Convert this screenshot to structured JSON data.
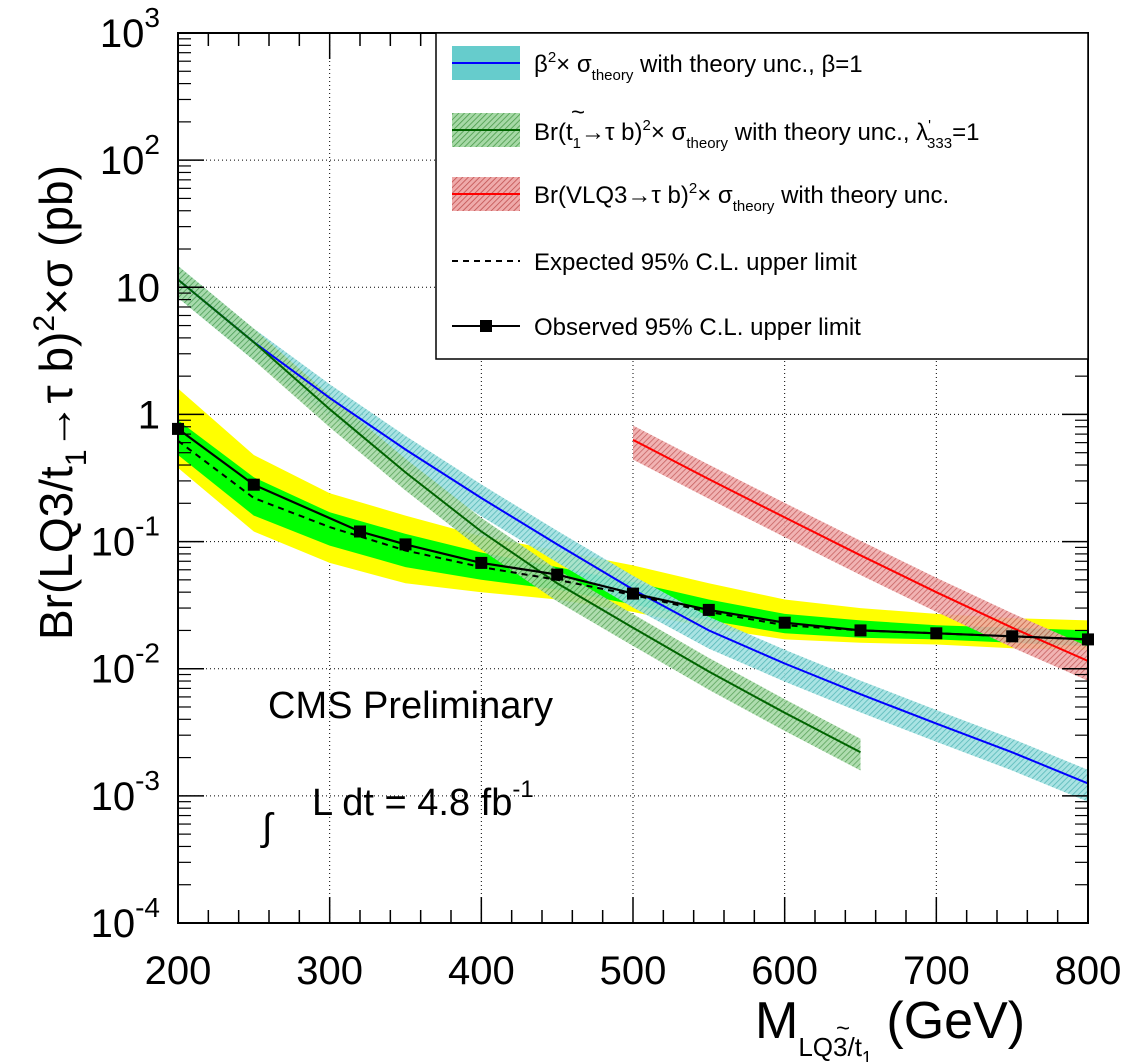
{
  "chart_data": {
    "type": "line",
    "log_y": true,
    "xlim": [
      200,
      800
    ],
    "ylim": [
      0.0001,
      1000
    ],
    "grid": true,
    "legend_position": "top-right",
    "x_ticks": [
      {
        "value": 200,
        "label": "200"
      },
      {
        "value": 300,
        "label": "300"
      },
      {
        "value": 400,
        "label": "400"
      },
      {
        "value": 500,
        "label": "500"
      },
      {
        "value": 600,
        "label": "600"
      },
      {
        "value": 700,
        "label": "700"
      },
      {
        "value": 800,
        "label": "800"
      }
    ],
    "y_ticks": [
      {
        "value": 1000,
        "base": "10",
        "exp": "3"
      },
      {
        "value": 100,
        "base": "10",
        "exp": "2"
      },
      {
        "value": 10,
        "base": "10",
        "exp": ""
      },
      {
        "value": 1,
        "base": "1",
        "exp": ""
      },
      {
        "value": 0.1,
        "base": "10",
        "exp": "-1"
      },
      {
        "value": 0.01,
        "base": "10",
        "exp": "-2"
      },
      {
        "value": 0.001,
        "base": "10",
        "exp": "-3"
      },
      {
        "value": 0.0001,
        "base": "10",
        "exp": "-4"
      }
    ],
    "xlabel": {
      "main": "M",
      "sub": "LQ3/t",
      "subsub": "1",
      "tilde": "~",
      "unit": " (GeV)"
    },
    "ylabel": {
      "p1": "Br(LQ3/t",
      "sub1": "1",
      "p2": "→τ b)",
      "sup": "2",
      "p3": "×σ (pb)"
    },
    "annotations": {
      "experiment": "CMS Preliminary",
      "integral": "∫",
      "lumi_text": "L dt = 4.8 fb",
      "lumi_exp": "-1"
    },
    "colors": {
      "beta_line": "#0000ff",
      "beta_band": "#66cccc",
      "stop_line": "#006400",
      "stop_band": "#66bb66",
      "vlq_line": "#ff0000",
      "vlq_band": "#dd6666",
      "one_sigma": "#00ff00",
      "two_sigma": "#ffff00",
      "limit": "#000000"
    },
    "series": [
      {
        "key": "beta",
        "x": [
          200,
          250,
          300,
          350,
          400,
          450,
          500,
          550,
          600,
          650,
          700,
          750,
          800
        ],
        "values": [
          11.5,
          3.7,
          1.35,
          0.53,
          0.22,
          0.095,
          0.042,
          0.02,
          0.011,
          0.0063,
          0.0037,
          0.0022,
          0.00125
        ],
        "band_rel": 0.28,
        "legend": {
          "pre": "β",
          "pre_sup": "2",
          "mid": "× σ",
          "sub": "theory",
          "post": " with theory unc., β=1"
        }
      },
      {
        "key": "stop",
        "x": [
          200,
          250,
          300,
          350,
          400,
          450,
          500,
          550,
          600,
          650
        ],
        "values": [
          11.5,
          3.7,
          1.1,
          0.35,
          0.12,
          0.047,
          0.021,
          0.0095,
          0.0045,
          0.0022
        ],
        "band_rel": 0.28,
        "legend": {
          "pre": "Br(",
          "tilde": "~",
          "t": "t",
          "t_sub": "1",
          "mid1": "→τ b)",
          "pre_sup": "2",
          "mid": "× σ",
          "sub": "theory",
          "post": " with theory unc., λ",
          "lam_sup": "'",
          "lam_sub": "333",
          "post2": "=1"
        }
      },
      {
        "key": "vlq",
        "x": [
          500,
          550,
          600,
          650,
          700,
          750,
          800
        ],
        "values": [
          0.63,
          0.31,
          0.155,
          0.078,
          0.04,
          0.021,
          0.0115
        ],
        "band_rel": 0.3,
        "legend": {
          "pre": "Br(VLQ3→τ b)",
          "pre_sup": "2",
          "mid": "× σ",
          "sub": "theory",
          "post": " with theory unc."
        }
      },
      {
        "key": "expected",
        "x": [
          200,
          250,
          300,
          350,
          400,
          450,
          500,
          550,
          600,
          650,
          700,
          750,
          800
        ],
        "values": [
          0.62,
          0.22,
          0.13,
          0.085,
          0.063,
          0.05,
          0.038,
          0.028,
          0.022,
          0.02,
          0.019,
          0.018,
          0.017
        ],
        "band_1sigma_lo": [
          0.48,
          0.16,
          0.093,
          0.063,
          0.05,
          0.042,
          0.032,
          0.024,
          0.019,
          0.0175,
          0.017,
          0.016,
          0.015
        ],
        "band_1sigma_hi": [
          0.9,
          0.32,
          0.17,
          0.115,
          0.082,
          0.063,
          0.048,
          0.035,
          0.027,
          0.024,
          0.022,
          0.021,
          0.02
        ],
        "band_2sigma_lo": [
          0.38,
          0.12,
          0.068,
          0.047,
          0.04,
          0.035,
          0.028,
          0.021,
          0.017,
          0.016,
          0.0155,
          0.0145,
          0.014
        ],
        "band_2sigma_hi": [
          1.6,
          0.48,
          0.24,
          0.16,
          0.11,
          0.085,
          0.065,
          0.047,
          0.035,
          0.03,
          0.027,
          0.025,
          0.024
        ],
        "legend": {
          "text": "Expected 95% C.L. upper limit"
        }
      },
      {
        "key": "observed",
        "x": [
          200,
          250,
          320,
          350,
          400,
          450,
          500,
          550,
          600,
          650,
          700,
          750,
          800
        ],
        "values": [
          0.77,
          0.28,
          0.12,
          0.095,
          0.068,
          0.055,
          0.039,
          0.029,
          0.023,
          0.02,
          0.019,
          0.018,
          0.017
        ],
        "legend": {
          "text": "Observed 95% C.L. upper limit"
        }
      }
    ]
  }
}
